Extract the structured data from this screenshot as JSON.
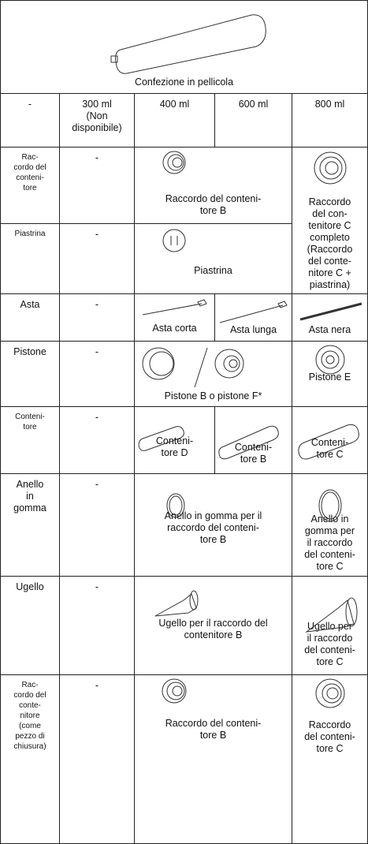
{
  "table": {
    "caption": "Confezione in pellicola",
    "columns": [
      "-",
      "300 ml\n(Non\ndisponibile)",
      "400 ml",
      "600 ml",
      "800 ml"
    ],
    "rows": [
      {
        "label": "Rac-\ncordo del\nconteni-\ntore",
        "cells": [
          "-",
          "Raccordo del conteni-\ntore B",
          "Raccordo\ndel con-\ntenitore C\ncompleto\n(Raccordo\ndel conte-\nnitore C +\npiastrina)"
        ]
      },
      {
        "label": "Piastrina",
        "cells": [
          "-",
          "Piastrina"
        ]
      },
      {
        "label": "Asta",
        "cells": [
          "-",
          "Asta corta",
          "Asta lunga",
          "Asta nera"
        ]
      },
      {
        "label": "Pistone",
        "cells": [
          "-",
          "Pistone B o pistone F*",
          "Pistone E"
        ]
      },
      {
        "label": "Conteni-\ntore",
        "cells": [
          "-",
          "Conteni-\ntore D",
          "Conteni-\ntore B",
          "Conteni-\ntore C"
        ]
      },
      {
        "label": "Anello\nin\ngomma",
        "cells": [
          "-",
          "Anello in gomma per il\nraccordo del conteni-\ntore B",
          "Anello in\ngomma per\nil raccordo\ndel conteni-\ntore C"
        ]
      },
      {
        "label": "Ugello",
        "cells": [
          "-",
          "Ugello per il raccordo del\ncontenitore B",
          "Ugello per\nil raccordo\ndel conteni-\ntore C"
        ]
      },
      {
        "label": "Rac-\ncordo del\nconte-\nnitore\n(come\npezzo di\nchiusura)",
        "cells": [
          "-",
          "Raccordo del conteni-\ntore B",
          "Raccordo\ndel conteni-\ntore C"
        ]
      }
    ]
  }
}
